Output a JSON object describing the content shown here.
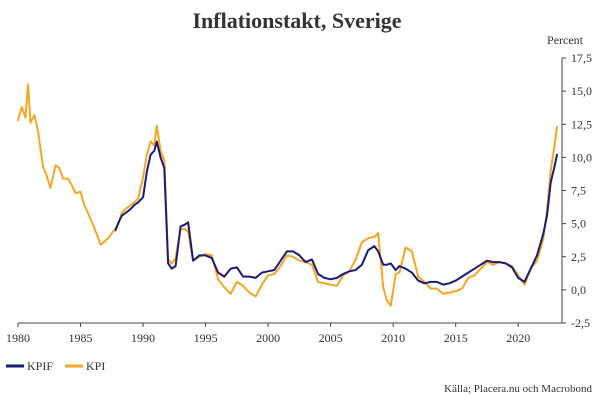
{
  "chart_data": {
    "type": "line",
    "title": "Inflationstakt, Sverige",
    "ylabel": "Percent",
    "xlabel": "",
    "xlim": [
      1980,
      2023.5
    ],
    "ylim": [
      -2.5,
      17.5
    ],
    "x_ticks": [
      1980,
      1985,
      1990,
      1995,
      2000,
      2005,
      2010,
      2015,
      2020
    ],
    "x_tick_labels": [
      "1980",
      "1985",
      "1990",
      "1995",
      "2000",
      "2005",
      "2010",
      "2015",
      "2020"
    ],
    "y_ticks": [
      -2.5,
      0,
      2.5,
      5,
      7.5,
      10,
      12.5,
      15,
      17.5
    ],
    "y_tick_labels": [
      "-2,5",
      "0,0",
      "2,5",
      "5,0",
      "7,5",
      "10,0",
      "12,5",
      "15,0",
      "17,5"
    ],
    "grid": false,
    "legend_position": "bottom-left",
    "source": "Källa; Placera.nu och Macrobond",
    "colors": {
      "KPIF": "#1a1a7a",
      "KPI": "#f5a623",
      "axis": "#444444"
    },
    "series": [
      {
        "name": "KPI",
        "x": [
          1980.0,
          1980.3,
          1980.6,
          1980.8,
          1981.0,
          1981.3,
          1981.6,
          1982.0,
          1982.3,
          1982.6,
          1983.0,
          1983.3,
          1983.6,
          1984.0,
          1984.3,
          1984.6,
          1985.0,
          1985.3,
          1985.6,
          1986.0,
          1986.3,
          1986.6,
          1987.0,
          1987.3,
          1987.6,
          1988.0,
          1988.3,
          1988.6,
          1989.0,
          1989.3,
          1989.6,
          1990.0,
          1990.3,
          1990.6,
          1990.9,
          1991.1,
          1991.4,
          1991.7,
          1992.0,
          1992.3,
          1992.6,
          1993.0,
          1993.3,
          1993.6,
          1994.0,
          1994.5,
          1995.0,
          1995.5,
          1996.0,
          1996.5,
          1997.0,
          1997.5,
          1998.0,
          1998.5,
          1999.0,
          1999.5,
          2000.0,
          2000.5,
          2001.0,
          2001.5,
          2002.0,
          2002.5,
          2003.0,
          2003.5,
          2004.0,
          2004.5,
          2005.0,
          2005.5,
          2006.0,
          2006.5,
          2007.0,
          2007.5,
          2008.0,
          2008.5,
          2008.8,
          2009.2,
          2009.5,
          2009.8,
          2010.2,
          2010.5,
          2011.0,
          2011.5,
          2012.0,
          2012.5,
          2013.0,
          2013.5,
          2014.0,
          2014.5,
          2015.0,
          2015.5,
          2016.0,
          2016.5,
          2017.0,
          2017.5,
          2018.0,
          2018.5,
          2019.0,
          2019.5,
          2020.0,
          2020.5,
          2021.0,
          2021.5,
          2022.0,
          2022.3,
          2022.6,
          2022.9,
          2023.1
        ],
        "values": [
          12.8,
          13.8,
          13.0,
          15.5,
          12.6,
          13.2,
          12.0,
          9.3,
          8.6,
          7.7,
          9.4,
          9.2,
          8.4,
          8.4,
          7.9,
          7.3,
          7.4,
          6.4,
          5.8,
          4.9,
          4.2,
          3.4,
          3.7,
          4.0,
          4.4,
          4.9,
          5.8,
          6.1,
          6.4,
          6.6,
          6.9,
          8.5,
          10.2,
          11.2,
          10.9,
          12.4,
          10.5,
          9.8,
          2.3,
          2.0,
          2.4,
          4.6,
          4.6,
          4.4,
          2.2,
          2.5,
          2.7,
          2.6,
          0.8,
          0.2,
          -0.3,
          0.6,
          0.3,
          -0.2,
          -0.5,
          0.4,
          1.1,
          1.2,
          1.8,
          2.6,
          2.5,
          2.2,
          2.1,
          1.9,
          0.6,
          0.5,
          0.4,
          0.3,
          1.1,
          1.4,
          2.3,
          3.6,
          3.9,
          4.0,
          4.3,
          0.2,
          -0.8,
          -1.2,
          1.2,
          1.3,
          3.2,
          2.9,
          1.0,
          0.6,
          0.1,
          0.1,
          -0.3,
          -0.2,
          -0.1,
          0.1,
          0.9,
          1.1,
          1.6,
          2.1,
          1.9,
          2.1,
          2.0,
          1.8,
          1.1,
          0.4,
          1.6,
          2.2,
          3.8,
          6.0,
          9.0,
          10.9,
          12.3
        ]
      },
      {
        "name": "KPIF",
        "x": [
          1987.8,
          1988.0,
          1988.3,
          1988.6,
          1989.0,
          1989.3,
          1989.6,
          1990.0,
          1990.3,
          1990.6,
          1990.9,
          1991.1,
          1991.4,
          1991.7,
          1992.0,
          1992.3,
          1992.6,
          1993.0,
          1993.3,
          1993.6,
          1994.0,
          1994.5,
          1995.0,
          1995.5,
          1996.0,
          1996.5,
          1997.0,
          1997.5,
          1998.0,
          1998.5,
          1999.0,
          1999.5,
          2000.0,
          2000.5,
          2001.0,
          2001.5,
          2002.0,
          2002.5,
          2003.0,
          2003.5,
          2004.0,
          2004.5,
          2005.0,
          2005.5,
          2006.0,
          2006.5,
          2007.0,
          2007.5,
          2008.0,
          2008.5,
          2008.8,
          2009.2,
          2009.5,
          2009.8,
          2010.2,
          2010.5,
          2011.0,
          2011.5,
          2012.0,
          2012.5,
          2013.0,
          2013.5,
          2014.0,
          2014.5,
          2015.0,
          2015.5,
          2016.0,
          2016.5,
          2017.0,
          2017.5,
          2018.0,
          2018.5,
          2019.0,
          2019.5,
          2020.0,
          2020.5,
          2021.0,
          2021.5,
          2022.0,
          2022.3,
          2022.6,
          2022.9,
          2023.1
        ],
        "values": [
          4.5,
          5.0,
          5.6,
          5.8,
          6.1,
          6.4,
          6.6,
          7.0,
          8.9,
          10.2,
          10.5,
          11.2,
          10.0,
          9.2,
          2.0,
          1.6,
          1.8,
          4.8,
          4.9,
          5.1,
          2.2,
          2.6,
          2.6,
          2.4,
          1.3,
          1.0,
          1.6,
          1.7,
          1.0,
          1.0,
          0.9,
          1.3,
          1.4,
          1.5,
          2.2,
          2.9,
          2.9,
          2.6,
          2.1,
          2.3,
          1.2,
          0.9,
          0.8,
          0.9,
          1.2,
          1.4,
          1.5,
          1.9,
          3.0,
          3.3,
          2.9,
          1.9,
          1.9,
          2.0,
          1.5,
          1.8,
          1.6,
          1.3,
          0.7,
          0.5,
          0.6,
          0.6,
          0.4,
          0.5,
          0.7,
          1.0,
          1.3,
          1.6,
          1.9,
          2.2,
          2.1,
          2.1,
          2.0,
          1.7,
          0.9,
          0.6,
          1.6,
          2.6,
          4.2,
          5.6,
          8.1,
          9.3,
          10.2
        ]
      }
    ]
  }
}
